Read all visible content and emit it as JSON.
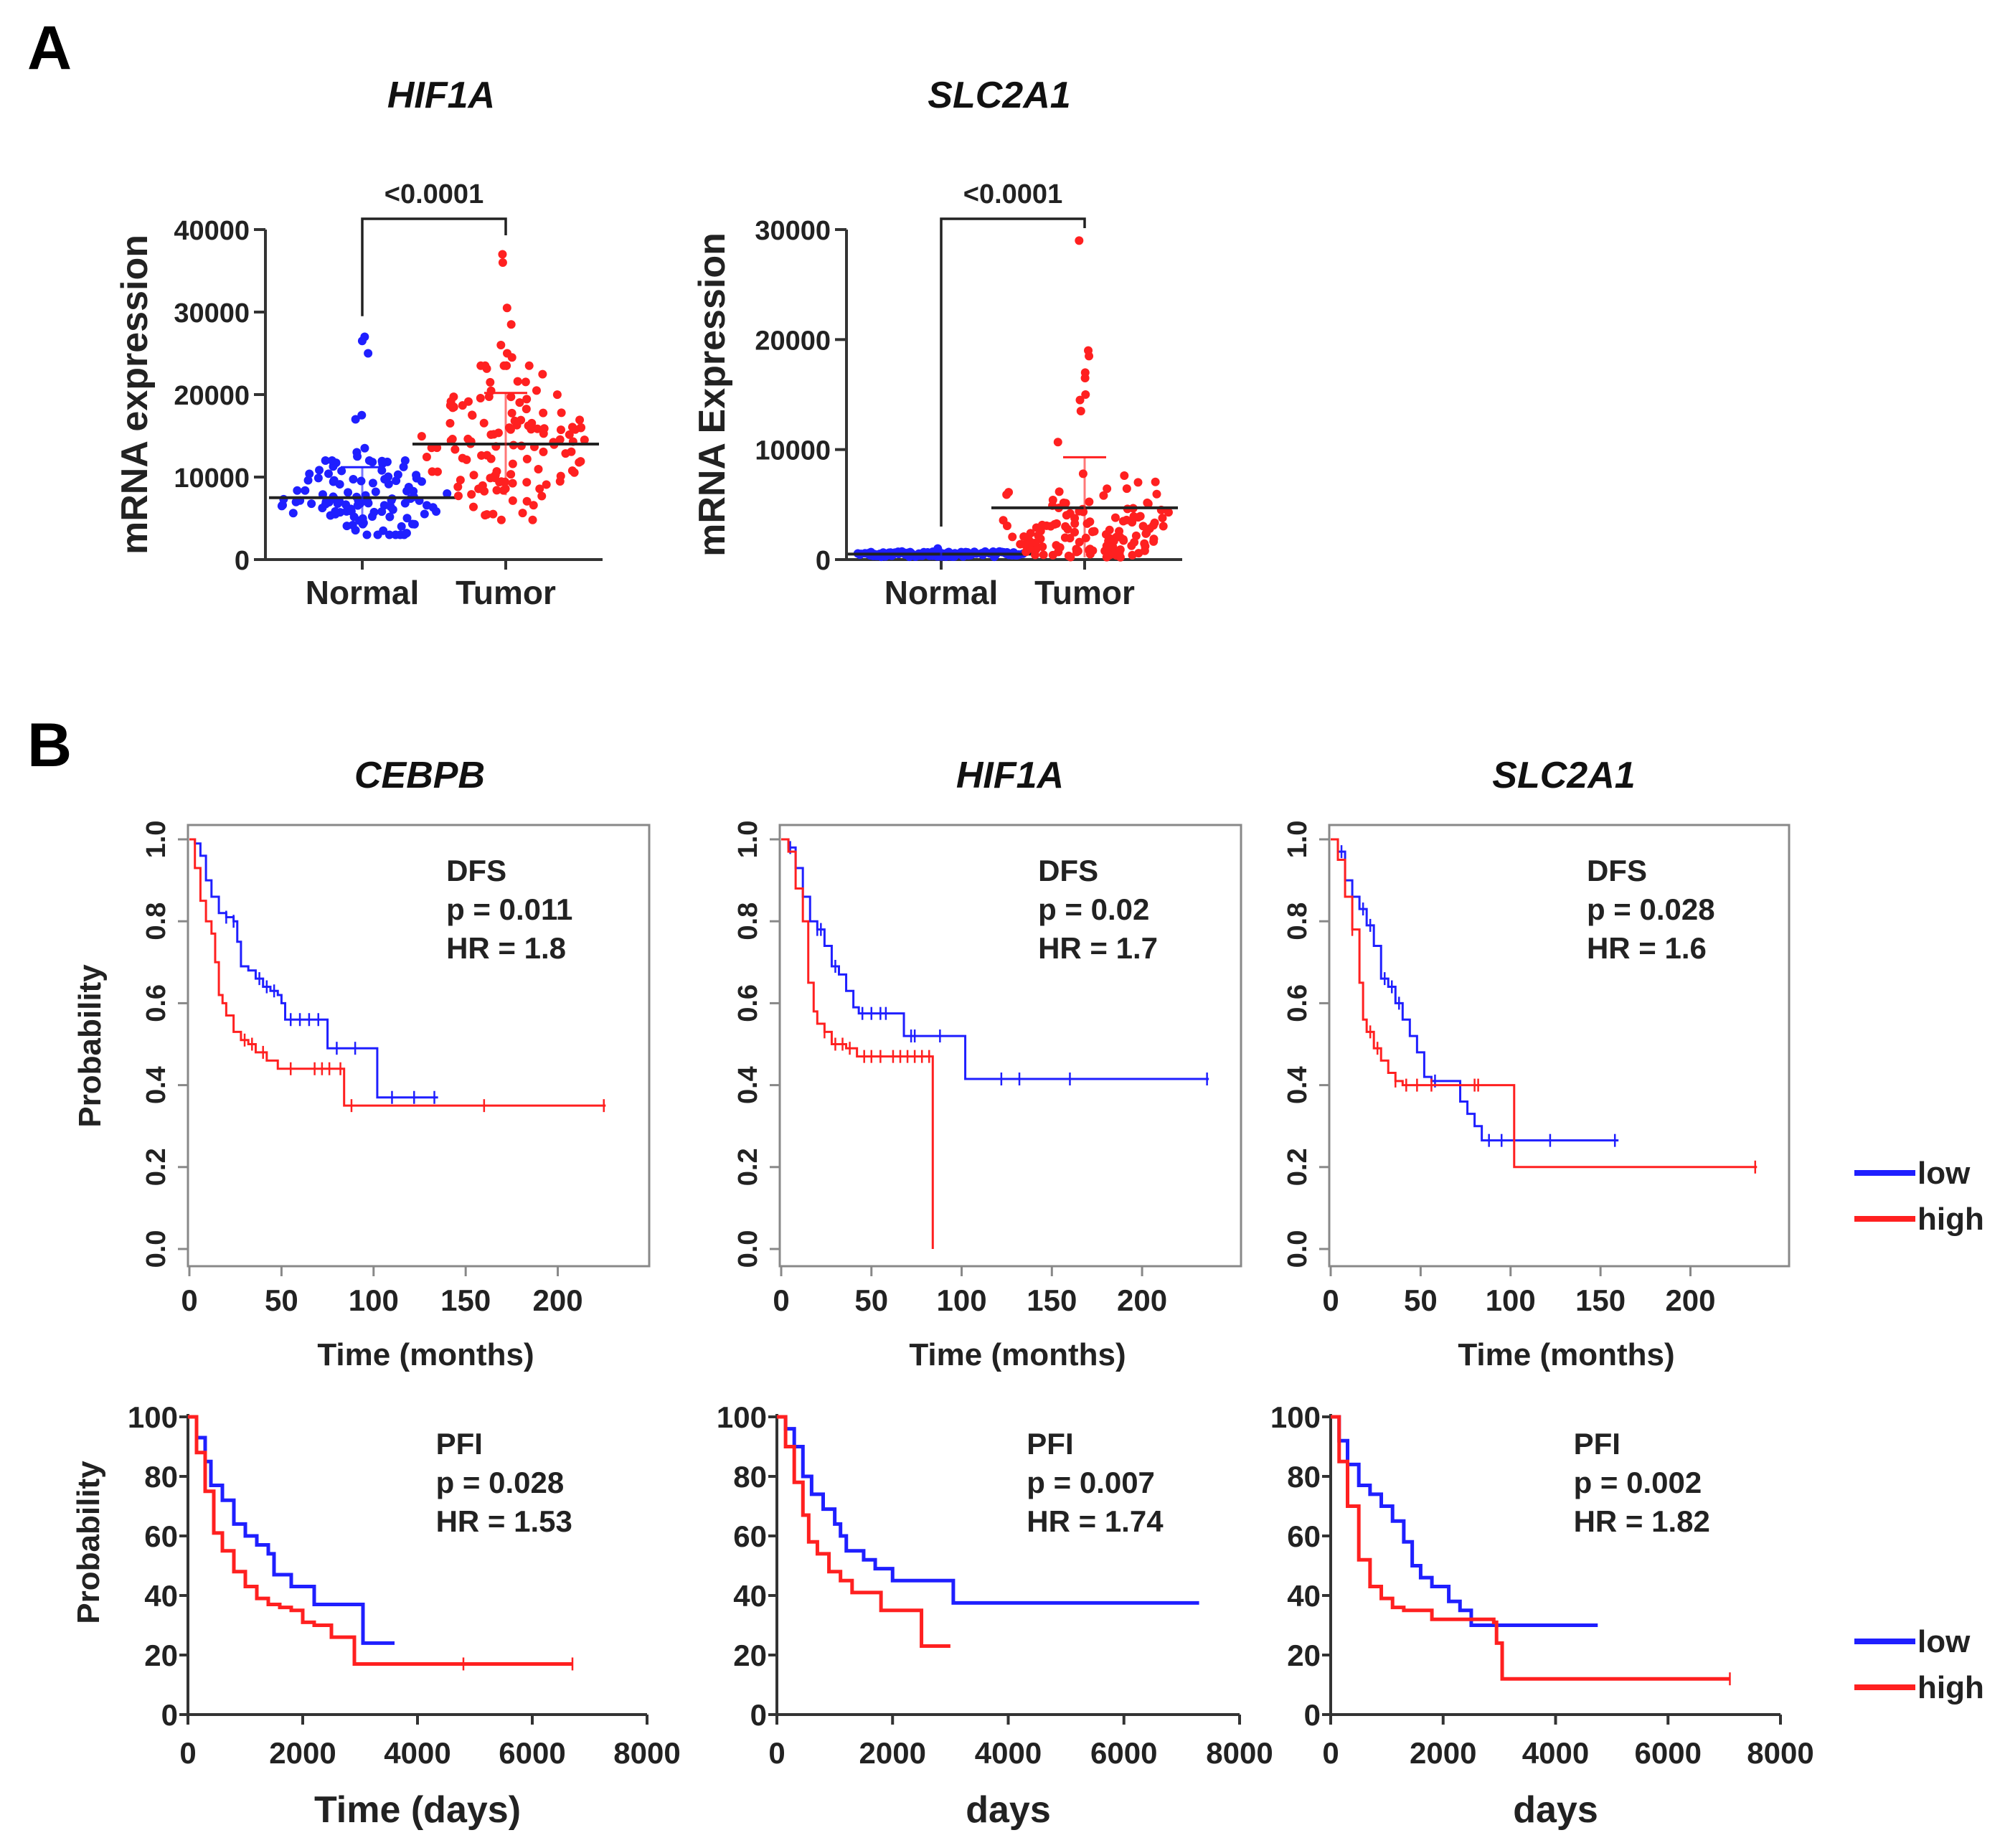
{
  "figure": {
    "panel_a_label": "A",
    "panel_b_label": "B"
  },
  "legend": {
    "items": [
      {
        "label": "low",
        "color": "#1f1fff"
      },
      {
        "label": "high",
        "color": "#ff2020"
      }
    ]
  },
  "chart_data": [
    {
      "id": "a1",
      "type": "scatter",
      "title": "HIF1A",
      "ylabel": "mRNA expression",
      "xlabel": "",
      "categories": [
        "Normal",
        "Tumor"
      ],
      "ylim": [
        0,
        40000
      ],
      "yticks": [
        0,
        10000,
        20000,
        30000,
        40000
      ],
      "significance": "<0.0001",
      "series": [
        {
          "name": "Normal",
          "color": "#1f1fff",
          "mean": 7500,
          "sd_upper": 11200,
          "sd_lower": 3800,
          "n": 110,
          "min": 3000,
          "max": 27000,
          "outliers": [
            27000,
            26500,
            25000,
            17500,
            17000,
            13500,
            13000,
            12500,
            12000
          ]
        },
        {
          "name": "Tumor",
          "color": "#ff2020",
          "mean": 14000,
          "sd_upper": 20200,
          "sd_lower": 7800,
          "n": 130,
          "min": 4800,
          "max": 37000,
          "outliers": [
            37000,
            36000,
            30500,
            28500,
            26000,
            25000,
            24500,
            23500
          ]
        }
      ]
    },
    {
      "id": "a2",
      "type": "scatter",
      "title": "SLC2A1",
      "ylabel": "mRNA Expression",
      "xlabel": "",
      "categories": [
        "Normal",
        "Tumor"
      ],
      "ylim": [
        0,
        30000
      ],
      "yticks": [
        0,
        10000,
        20000,
        30000
      ],
      "significance": "<0.0001",
      "series": [
        {
          "name": "Normal",
          "color": "#1f1fff",
          "mean": 500,
          "sd_upper": 800,
          "sd_lower": 200,
          "n": 110,
          "min": 200,
          "max": 1000,
          "outliers": [
            1000
          ]
        },
        {
          "name": "Tumor",
          "color": "#ff2020",
          "mean": 4700,
          "sd_upper": 9300,
          "sd_lower": 200,
          "n": 130,
          "min": 100,
          "max": 29000,
          "outliers": [
            29000,
            19000,
            18500,
            17000,
            16500,
            15000,
            14500,
            13500
          ]
        }
      ]
    },
    {
      "id": "b1",
      "type": "line",
      "subtype": "kaplan-meier",
      "style": "boxed",
      "title": "CEBPB",
      "ylabel": "Probability",
      "xlabel": "Time (months)",
      "xlim": [
        0,
        240
      ],
      "ylim": [
        0,
        1.0
      ],
      "xticks": [
        0,
        50,
        100,
        150,
        200
      ],
      "yticks": [
        0.0,
        0.2,
        0.4,
        0.6,
        0.8,
        1.0
      ],
      "ytick_labels": [
        "0.0",
        "0.2",
        "0.4",
        "0.6",
        "0.8",
        "1.0"
      ],
      "annotation": [
        "DFS",
        "p = 0.011",
        "HR = 1.8"
      ],
      "series": [
        {
          "name": "low",
          "color": "#1f1fff",
          "x": [
            0,
            3,
            6,
            9,
            12,
            16,
            20,
            24,
            26,
            28,
            32,
            36,
            40,
            44,
            48,
            50,
            52,
            75,
            102,
            135
          ],
          "y": [
            1.0,
            0.99,
            0.96,
            0.9,
            0.86,
            0.82,
            0.81,
            0.8,
            0.75,
            0.69,
            0.68,
            0.66,
            0.64,
            0.63,
            0.62,
            0.6,
            0.56,
            0.49,
            0.37,
            0.37
          ],
          "censor_x": [
            20,
            24,
            38,
            42,
            46,
            55,
            60,
            65,
            70,
            80,
            90,
            110,
            122,
            133
          ]
        },
        {
          "name": "high",
          "color": "#ff2020",
          "x": [
            0,
            3,
            6,
            9,
            12,
            14,
            16,
            18,
            20,
            24,
            28,
            32,
            36,
            42,
            48,
            84,
            226
          ],
          "y": [
            1.0,
            0.93,
            0.85,
            0.8,
            0.77,
            0.7,
            0.62,
            0.6,
            0.57,
            0.53,
            0.51,
            0.5,
            0.48,
            0.46,
            0.44,
            0.35,
            0.35
          ],
          "censor_x": [
            30,
            34,
            40,
            55,
            68,
            72,
            76,
            82,
            88,
            160,
            225
          ]
        }
      ]
    },
    {
      "id": "b2",
      "type": "line",
      "subtype": "kaplan-meier",
      "style": "boxed",
      "title": "HIF1A",
      "ylabel": "",
      "xlabel": "Time (months)",
      "xlim": [
        0,
        245
      ],
      "ylim": [
        0,
        1.0
      ],
      "xticks": [
        0,
        50,
        100,
        150,
        200
      ],
      "yticks": [
        0.0,
        0.2,
        0.4,
        0.6,
        0.8,
        1.0
      ],
      "ytick_labels": [
        "0.0",
        "0.2",
        "0.4",
        "0.6",
        "0.8",
        "1.0"
      ],
      "annotation": [
        "DFS",
        "p = 0.02",
        "HR = 1.7"
      ],
      "series": [
        {
          "name": "low",
          "color": "#1f1fff",
          "x": [
            0,
            4,
            8,
            12,
            16,
            20,
            24,
            28,
            32,
            36,
            40,
            43,
            68,
            102,
            237
          ],
          "y": [
            1.0,
            0.98,
            0.93,
            0.86,
            0.8,
            0.78,
            0.74,
            0.69,
            0.67,
            0.63,
            0.59,
            0.575,
            0.52,
            0.415,
            0.415
          ],
          "censor_x": [
            5,
            20,
            22,
            30,
            45,
            50,
            55,
            58,
            72,
            74,
            88,
            122,
            132,
            160,
            236
          ]
        },
        {
          "name": "high",
          "color": "#ff2020",
          "x": [
            0,
            4,
            8,
            12,
            15,
            18,
            20,
            24,
            28,
            36,
            42,
            84,
            84
          ],
          "y": [
            1.0,
            0.97,
            0.88,
            0.8,
            0.65,
            0.58,
            0.55,
            0.53,
            0.5,
            0.49,
            0.47,
            0.47,
            0.0
          ],
          "censor_x": [
            24,
            30,
            34,
            38,
            46,
            50,
            55,
            62,
            66,
            70,
            74,
            78,
            82
          ]
        }
      ]
    },
    {
      "id": "b3",
      "type": "line",
      "subtype": "kaplan-meier",
      "style": "boxed",
      "title": "SLC2A1",
      "ylabel": "",
      "xlabel": "Time (months)",
      "xlim": [
        0,
        245
      ],
      "ylim": [
        0,
        1.0
      ],
      "xticks": [
        0,
        50,
        100,
        150,
        200
      ],
      "yticks": [
        0.0,
        0.2,
        0.4,
        0.6,
        0.8,
        1.0
      ],
      "ytick_labels": [
        "0.0",
        "0.2",
        "0.4",
        "0.6",
        "0.8",
        "1.0"
      ],
      "annotation": [
        "DFS",
        "p = 0.028",
        "HR = 1.6"
      ],
      "series": [
        {
          "name": "low",
          "color": "#1f1fff",
          "x": [
            0,
            4,
            8,
            12,
            16,
            20,
            24,
            28,
            32,
            36,
            40,
            44,
            48,
            52,
            56,
            68,
            72,
            76,
            80,
            84,
            160
          ],
          "y": [
            1.0,
            0.97,
            0.9,
            0.86,
            0.83,
            0.79,
            0.74,
            0.66,
            0.64,
            0.6,
            0.56,
            0.52,
            0.48,
            0.42,
            0.41,
            0.41,
            0.36,
            0.33,
            0.3,
            0.265,
            0.265
          ],
          "censor_x": [
            6,
            18,
            22,
            30,
            34,
            38,
            58,
            88,
            95,
            122,
            158
          ]
        },
        {
          "name": "high",
          "color": "#ff2020",
          "x": [
            0,
            4,
            8,
            12,
            16,
            18,
            20,
            24,
            28,
            32,
            36,
            40,
            102,
            102,
            237
          ],
          "y": [
            1.0,
            0.95,
            0.86,
            0.78,
            0.65,
            0.56,
            0.53,
            0.49,
            0.46,
            0.43,
            0.41,
            0.4,
            0.4,
            0.2,
            0.2
          ],
          "censor_x": [
            12,
            22,
            26,
            36,
            42,
            48,
            56,
            80,
            82,
            236
          ]
        }
      ]
    },
    {
      "id": "b4",
      "type": "line",
      "subtype": "kaplan-meier",
      "style": "open",
      "title": "",
      "ylabel": "Probability",
      "xlabel": "Time (days)",
      "xlim": [
        0,
        8000
      ],
      "ylim": [
        0,
        100
      ],
      "xticks": [
        0,
        2000,
        4000,
        6000,
        8000
      ],
      "yticks": [
        0,
        20,
        40,
        60,
        80,
        100
      ],
      "ytick_labels": [
        "0",
        "20",
        "40",
        "60",
        "80",
        "100"
      ],
      "annotation": [
        "PFI",
        "p = 0.028",
        "HR = 1.53"
      ],
      "series": [
        {
          "name": "low",
          "color": "#1f1fff",
          "x": [
            0,
            150,
            300,
            400,
            600,
            800,
            1000,
            1200,
            1400,
            1500,
            1800,
            2200,
            3050,
            3600
          ],
          "y": [
            100,
            93,
            85,
            77,
            72,
            64,
            60,
            57,
            54,
            47,
            43,
            37,
            24,
            24
          ],
          "censor_x": []
        },
        {
          "name": "high",
          "color": "#ff2020",
          "x": [
            0,
            150,
            300,
            450,
            600,
            800,
            1000,
            1200,
            1400,
            1600,
            1800,
            2000,
            2200,
            2500,
            2900,
            2900,
            6700
          ],
          "y": [
            100,
            88,
            75,
            61,
            55,
            48,
            43,
            39,
            37,
            36,
            35,
            31,
            30,
            26,
            25,
            17,
            17
          ],
          "censor_x": [
            4800,
            6700
          ]
        }
      ]
    },
    {
      "id": "b5",
      "type": "line",
      "subtype": "kaplan-meier",
      "style": "open",
      "title": "",
      "ylabel": "",
      "xlabel": "days",
      "xlim": [
        0,
        8000
      ],
      "ylim": [
        0,
        100
      ],
      "xticks": [
        0,
        2000,
        4000,
        6000,
        8000
      ],
      "yticks": [
        0,
        20,
        40,
        60,
        80,
        100
      ],
      "ytick_labels": [
        "0",
        "20",
        "40",
        "60",
        "80",
        "100"
      ],
      "annotation": [
        "PFI",
        "p = 0.007",
        "HR = 1.74"
      ],
      "series": [
        {
          "name": "low",
          "color": "#1f1fff",
          "x": [
            0,
            150,
            300,
            450,
            600,
            800,
            1000,
            1100,
            1200,
            1500,
            1700,
            2000,
            3000,
            3050,
            7300
          ],
          "y": [
            100,
            96,
            90,
            80,
            74,
            69,
            64,
            60,
            55,
            52,
            49,
            45,
            45,
            37.5,
            37.5
          ],
          "censor_x": []
        },
        {
          "name": "high",
          "color": "#ff2020",
          "x": [
            0,
            150,
            300,
            450,
            550,
            700,
            900,
            1100,
            1300,
            1700,
            1800,
            2500,
            2500,
            3000
          ],
          "y": [
            100,
            90,
            78,
            67,
            58,
            54,
            48,
            45,
            41,
            41,
            35,
            35,
            23,
            23
          ],
          "censor_x": []
        }
      ]
    },
    {
      "id": "b6",
      "type": "line",
      "subtype": "kaplan-meier",
      "style": "open",
      "title": "",
      "ylabel": "",
      "xlabel": "days",
      "xlim": [
        0,
        8000
      ],
      "ylim": [
        0,
        100
      ],
      "xticks": [
        0,
        2000,
        4000,
        6000,
        8000
      ],
      "yticks": [
        0,
        20,
        40,
        60,
        80,
        100
      ],
      "ytick_labels": [
        "0",
        "20",
        "40",
        "60",
        "80",
        "100"
      ],
      "annotation": [
        "PFI",
        "p = 0.002",
        "HR = 1.82"
      ],
      "series": [
        {
          "name": "low",
          "color": "#1f1fff",
          "x": [
            0,
            150,
            300,
            500,
            700,
            900,
            1100,
            1300,
            1450,
            1600,
            1800,
            2100,
            2300,
            2500,
            4750
          ],
          "y": [
            100,
            92,
            84,
            77,
            74,
            70,
            65,
            58,
            50,
            46,
            43,
            38,
            35,
            30,
            30
          ],
          "censor_x": []
        },
        {
          "name": "high",
          "color": "#ff2020",
          "x": [
            0,
            150,
            300,
            500,
            700,
            900,
            1100,
            1300,
            1800,
            2900,
            2950,
            3050,
            3050,
            7100
          ],
          "y": [
            100,
            85,
            70,
            52,
            43,
            39,
            36,
            35,
            32,
            31,
            24,
            22,
            12,
            12
          ],
          "censor_x": [
            7100
          ]
        }
      ]
    }
  ]
}
